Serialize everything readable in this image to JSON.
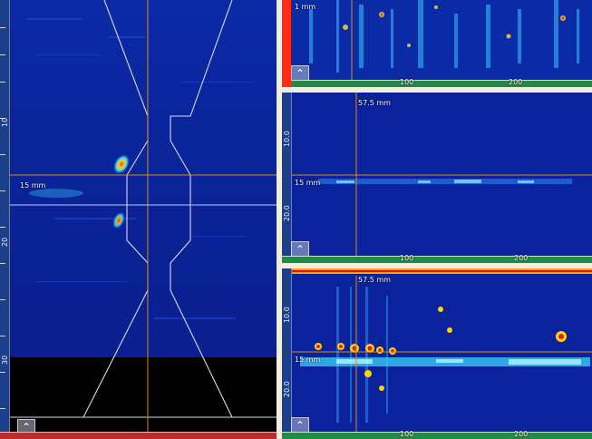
{
  "left_panel": {
    "readout_depth": "15 mm",
    "ruler_labels": [
      "10",
      "20",
      "30"
    ],
    "corner_button_icon": "zoom-icon"
  },
  "right_top_panel": {
    "readout_depth": "1 mm",
    "scale_labels": [
      "100",
      "200"
    ],
    "corner_button_icon": "zoom-icon"
  },
  "right_middle_panel": {
    "readout_position": "57.5 mm",
    "readout_depth": "15 mm",
    "ruler_labels": [
      "10.0",
      "20.0"
    ],
    "scale_labels": [
      "100",
      "200"
    ],
    "corner_button_icon": "zoom-icon"
  },
  "right_bottom_panel": {
    "readout_position": "57.5 mm",
    "readout_depth": "15 mm",
    "ruler_labels": [
      "10.0",
      "20.0"
    ],
    "scale_labels": [
      "100",
      "200"
    ],
    "corner_button_icon": "zoom-icon"
  },
  "colors": {
    "background_blue": "#0a1f8f",
    "cursor_orange": "#d88a1b",
    "ruler_green": "#1f8c45",
    "ruler_red": "#bf2a2a",
    "highlight_red": "#ff2a16"
  }
}
